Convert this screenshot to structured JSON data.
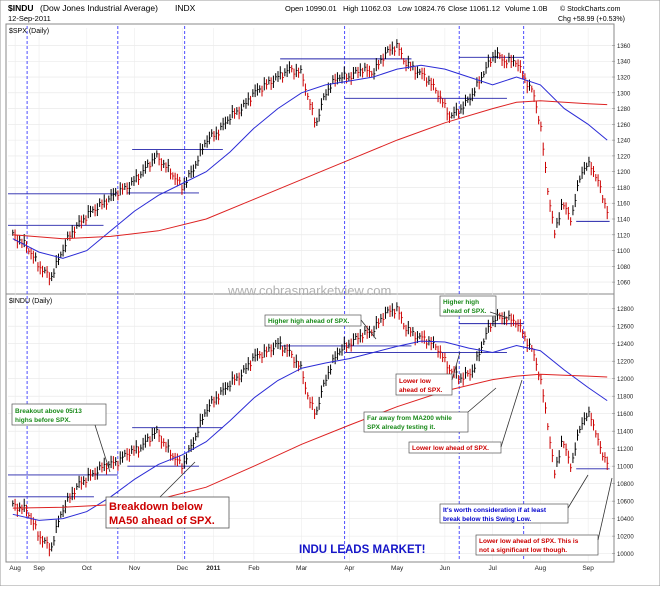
{
  "header": {
    "symbol": "$INDU",
    "name": "(Dow Jones Industrial Average)",
    "exchange": "INDX",
    "date": "12-Sep-2011",
    "open": "Open 10990.01",
    "high": "High 11062.03",
    "low": "Low 10824.76",
    "close": "Close 11061.12",
    "volume": "Volume 1.0B",
    "change": "Chg +58.99 (+0.53%)",
    "brand": "© StockCharts.com"
  },
  "watermark": "www.cobrasmarketview.com",
  "banner": "INDU LEADS MARKET!",
  "colors": {
    "price_up": "#000000",
    "price_down": "#cc0000",
    "ma50": "#2b2bd6",
    "ma200": "#dd2222",
    "annotation_green": "#1a8a1a",
    "annotation_red": "#cc0000",
    "annotation_blue": "#0000cc",
    "vline": "#3a3aff"
  },
  "chart_data": [
    {
      "type": "line",
      "panel_label": "$SPX (Daily)",
      "y_ticks": [
        1060,
        1080,
        1100,
        1120,
        1140,
        1160,
        1180,
        1200,
        1220,
        1240,
        1260,
        1280,
        1300,
        1320,
        1340,
        1360
      ],
      "ylim": [
        1050,
        1372
      ],
      "x_tick_labels": [
        "Aug",
        "Sep",
        "Oct",
        "Nov",
        "Dec",
        "2011",
        "Feb",
        "Mar",
        "Apr",
        "May",
        "Jun",
        "Jul",
        "Aug",
        "Sep"
      ],
      "x_tick_positions": [
        0.3,
        1.3,
        3.3,
        5.3,
        7.3,
        8.6,
        10.3,
        12.3,
        14.3,
        16.3,
        18.3,
        20.3,
        22.3,
        24.3
      ],
      "xlim": [
        0,
        25.3
      ],
      "series": [
        {
          "key": "price",
          "x": [
            0.2,
            0.8,
            1.3,
            1.8,
            2.2,
            2.6,
            3.0,
            3.5,
            4.0,
            4.6,
            5.0,
            5.5,
            6.2,
            6.8,
            7.3,
            7.8,
            8.3,
            8.8,
            9.3,
            9.8,
            10.3,
            10.8,
            11.3,
            11.8,
            12.3,
            12.6,
            12.9,
            13.3,
            13.8,
            14.3,
            14.8,
            15.3,
            15.8,
            16.3,
            16.6,
            17.0,
            17.5,
            18.0,
            18.5,
            19.0,
            19.5,
            20.0,
            20.4,
            20.8,
            21.3,
            21.6,
            22.0,
            22.3,
            22.6,
            22.9,
            23.2,
            23.6,
            24.0,
            24.4,
            24.8,
            25.1
          ],
          "y": [
            1120,
            1105,
            1080,
            1065,
            1095,
            1120,
            1135,
            1150,
            1160,
            1175,
            1180,
            1195,
            1220,
            1200,
            1180,
            1205,
            1240,
            1250,
            1270,
            1280,
            1300,
            1310,
            1320,
            1330,
            1325,
            1290,
            1260,
            1300,
            1320,
            1320,
            1330,
            1325,
            1350,
            1360,
            1340,
            1330,
            1320,
            1300,
            1270,
            1280,
            1300,
            1330,
            1350,
            1340,
            1340,
            1320,
            1300,
            1260,
            1180,
            1120,
            1160,
            1140,
            1200,
            1210,
            1180,
            1150
          ]
        },
        {
          "key": "ma50",
          "x": [
            0.2,
            1.3,
            2.3,
            3.3,
            4.3,
            5.3,
            6.3,
            7.3,
            8.3,
            9.3,
            10.3,
            11.3,
            12.3,
            13.3,
            14.3,
            15.3,
            16.3,
            17.3,
            18.3,
            19.3,
            20.3,
            21.3,
            22.3,
            23.3,
            24.3,
            25.1
          ],
          "y": [
            1115,
            1098,
            1090,
            1100,
            1125,
            1150,
            1170,
            1185,
            1200,
            1225,
            1255,
            1280,
            1300,
            1310,
            1315,
            1320,
            1330,
            1335,
            1330,
            1320,
            1310,
            1320,
            1310,
            1280,
            1260,
            1240
          ]
        },
        {
          "key": "ma200",
          "x": [
            0.2,
            2.3,
            4.3,
            6.3,
            8.3,
            10.3,
            12.3,
            14.3,
            16.3,
            18.3,
            20.3,
            21.3,
            22.3,
            23.3,
            24.3,
            25.1
          ],
          "y": [
            1120,
            1115,
            1118,
            1125,
            1140,
            1165,
            1190,
            1215,
            1240,
            1262,
            1280,
            1288,
            1290,
            1288,
            1286,
            1285
          ]
        }
      ],
      "hlines": [
        {
          "y": 1172,
          "x0": 0,
          "x1": 4.6
        },
        {
          "y": 1132,
          "x0": 0,
          "x1": 4.0
        },
        {
          "y": 1228,
          "x0": 5.2,
          "x1": 9.0
        },
        {
          "y": 1173,
          "x0": 5.0,
          "x1": 8.0
        },
        {
          "y": 1343,
          "x0": 11.4,
          "x1": 16.9
        },
        {
          "y": 1293,
          "x0": 14.1,
          "x1": 20.9
        },
        {
          "y": 1345,
          "x0": 18.9,
          "x1": 21.6
        },
        {
          "y": 1137,
          "x0": 23.8,
          "x1": 25.2
        }
      ]
    },
    {
      "type": "line",
      "panel_label": "$INDU (Daily)",
      "y_ticks": [
        10000,
        10200,
        10400,
        10600,
        10800,
        11000,
        11200,
        11400,
        11600,
        11800,
        12000,
        12200,
        12400,
        12600,
        12800
      ],
      "ylim": [
        9950,
        12900
      ],
      "x_tick_labels": [
        "Aug",
        "Sep",
        "Oct",
        "Nov",
        "Dec",
        "2011",
        "Feb",
        "Mar",
        "Apr",
        "May",
        "Jun",
        "Jul",
        "Aug",
        "Sep"
      ],
      "x_tick_positions": [
        0.3,
        1.3,
        3.3,
        5.3,
        7.3,
        8.6,
        10.3,
        12.3,
        14.3,
        16.3,
        18.3,
        20.3,
        22.3,
        24.3
      ],
      "xlim": [
        0,
        25.3
      ],
      "series": [
        {
          "key": "price",
          "x": [
            0.2,
            0.8,
            1.3,
            1.8,
            2.2,
            2.6,
            3.0,
            3.5,
            4.0,
            4.6,
            5.0,
            5.5,
            6.2,
            6.8,
            7.3,
            7.8,
            8.3,
            8.8,
            9.3,
            9.8,
            10.3,
            10.8,
            11.3,
            11.8,
            12.3,
            12.6,
            12.9,
            13.3,
            13.8,
            14.3,
            14.8,
            15.3,
            15.8,
            16.3,
            16.6,
            17.0,
            17.5,
            18.0,
            18.5,
            19.0,
            19.5,
            20.0,
            20.4,
            20.8,
            21.3,
            21.6,
            22.0,
            22.3,
            22.6,
            22.9,
            23.2,
            23.6,
            24.0,
            24.4,
            24.8,
            25.1
          ],
          "y": [
            10550,
            10500,
            10200,
            10050,
            10450,
            10650,
            10800,
            10900,
            11000,
            11050,
            11150,
            11200,
            11400,
            11150,
            11000,
            11300,
            11650,
            11800,
            11950,
            12050,
            12250,
            12300,
            12400,
            12300,
            12100,
            11750,
            11600,
            12000,
            12300,
            12400,
            12500,
            12550,
            12750,
            12800,
            12600,
            12500,
            12450,
            12350,
            12100,
            12000,
            12100,
            12500,
            12700,
            12700,
            12650,
            12500,
            12300,
            12000,
            11500,
            10900,
            11300,
            11000,
            11500,
            11600,
            11200,
            11050
          ]
        },
        {
          "key": "ma50",
          "x": [
            0.2,
            1.3,
            2.3,
            3.3,
            4.3,
            5.3,
            6.3,
            7.3,
            8.3,
            9.3,
            10.3,
            11.3,
            12.3,
            13.3,
            14.3,
            15.3,
            16.3,
            17.3,
            18.3,
            19.3,
            20.3,
            21.3,
            22.3,
            23.3,
            24.3,
            25.1
          ],
          "y": [
            10450,
            10380,
            10400,
            10480,
            10650,
            10850,
            11020,
            11130,
            11280,
            11520,
            11780,
            11980,
            12120,
            12180,
            12230,
            12300,
            12370,
            12430,
            12420,
            12350,
            12300,
            12380,
            12320,
            12100,
            11900,
            11750
          ]
        },
        {
          "key": "ma200",
          "x": [
            0.2,
            2.3,
            4.3,
            6.3,
            8.3,
            10.3,
            12.3,
            14.3,
            16.3,
            18.3,
            20.3,
            21.3,
            22.3,
            23.3,
            24.3,
            25.1
          ],
          "y": [
            10520,
            10530,
            10560,
            10620,
            10760,
            11000,
            11250,
            11470,
            11680,
            11860,
            11990,
            12030,
            12050,
            12040,
            12030,
            12020
          ]
        }
      ],
      "hlines": [
        {
          "y": 10900,
          "x0": 0,
          "x1": 4.6
        },
        {
          "y": 10650,
          "x0": 0,
          "x1": 3.6
        },
        {
          "y": 11440,
          "x0": 5.2,
          "x1": 9.0
        },
        {
          "y": 11000,
          "x0": 5.0,
          "x1": 8.0
        },
        {
          "y": 12375,
          "x0": 11.4,
          "x1": 16.9
        },
        {
          "y": 12300,
          "x0": 14.1,
          "x1": 20.9
        },
        {
          "y": 12630,
          "x0": 18.9,
          "x1": 21.6
        },
        {
          "y": 10970,
          "x0": 23.8,
          "x1": 25.2
        }
      ]
    }
  ],
  "annotations": [
    {
      "key": "breakout",
      "lines": [
        "Breakout above 05/13",
        "highs before SPX."
      ],
      "color": "annotation_green"
    },
    {
      "key": "breakdown",
      "lines": [
        "Breakdown below",
        "MA50 ahead of SPX."
      ],
      "color": "annotation_red"
    },
    {
      "key": "higher_high_1",
      "lines": [
        "Higher high ahead of SPX."
      ],
      "color": "annotation_green"
    },
    {
      "key": "higher_high_2",
      "lines": [
        "Higher high",
        "ahead of SPX."
      ],
      "color": "annotation_green"
    },
    {
      "key": "lower_low_1",
      "lines": [
        "Lower low",
        "ahead of SPX."
      ],
      "color": "annotation_red"
    },
    {
      "key": "far_from_ma200",
      "lines": [
        "Far away from MA200 while",
        "SPX already testing it."
      ],
      "color": "annotation_green"
    },
    {
      "key": "lower_low_2",
      "lines": [
        "Lower low ahead of SPX."
      ],
      "color": "annotation_red"
    },
    {
      "key": "worth_consideration",
      "lines": [
        "It's worth consideration if at least",
        "break below this Swing Low."
      ],
      "color": "annotation_blue"
    },
    {
      "key": "lower_low_3",
      "lines": [
        "Lower low ahead of SPX. This is",
        "not a significant low though."
      ],
      "color": "annotation_red"
    }
  ]
}
